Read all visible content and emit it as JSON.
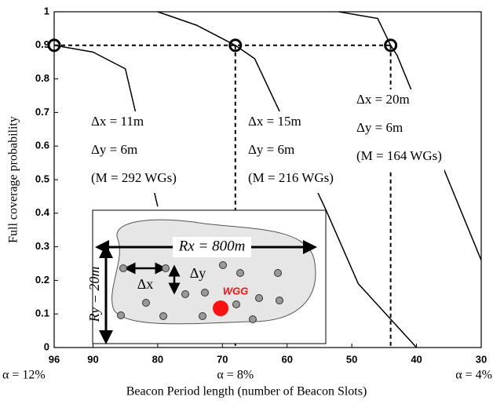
{
  "chart_data": {
    "type": "line",
    "x_label": "Beacon Period length (number of Beacon Slots)",
    "y_label": "Full coverage probability",
    "xlim": [
      96,
      30
    ],
    "ylim": [
      0,
      1
    ],
    "xticks": [
      96,
      90,
      80,
      70,
      60,
      50,
      40,
      30
    ],
    "yticks": [
      0,
      0.1,
      0.2,
      0.3,
      0.4,
      0.5,
      0.6,
      0.7,
      0.8,
      0.9,
      1
    ],
    "series": [
      {
        "color": "#000000",
        "x": [
          96,
          90,
          85,
          80
        ],
        "values": [
          0.9,
          0.88,
          0.83,
          0.42
        ]
      },
      {
        "color": "#000000",
        "x": [
          80,
          74,
          68,
          65,
          54,
          49,
          40
        ],
        "values": [
          1,
          0.96,
          0.9,
          0.86,
          0.41,
          0.19,
          0
        ]
      },
      {
        "color": "#000000",
        "x": [
          52,
          46,
          44,
          43,
          30
        ],
        "values": [
          1,
          0.98,
          0.9,
          0.87,
          0.26
        ]
      }
    ],
    "reference": {
      "y": 0.9,
      "x": [
        96,
        68,
        44
      ]
    },
    "alpha_labels": [
      {
        "x": 96,
        "label": "α = 12%"
      },
      {
        "x": 68,
        "label": "α = 8%"
      },
      {
        "x": 30,
        "label": "α = 4%"
      }
    ],
    "annotations": [
      [
        "Δx = 11m",
        "Δy = 6m",
        "(M = 292 WGs)"
      ],
      [
        "Δx = 15m",
        "Δy = 6m",
        "(M = 216 WGs)"
      ],
      [
        "Δx = 20m",
        "Δy = 6m",
        "(M = 164 WGs)"
      ]
    ],
    "inset": {
      "rx": "Rx = 800m",
      "ry": "Ry = 20m",
      "dx": "Δx",
      "dy": "Δy",
      "wgg": "WGG"
    }
  }
}
